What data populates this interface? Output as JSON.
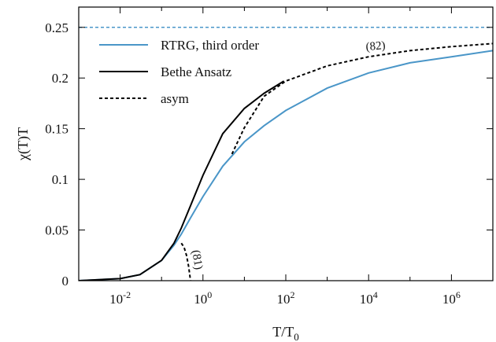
{
  "chart_data": {
    "type": "line",
    "title": "",
    "xlabel": "T/T",
    "xlabel_sub": "0",
    "ylabel": "χ(T)T",
    "x_scale": "log10",
    "xlim": [
      0.001,
      10000000
    ],
    "ylim": [
      0,
      0.27
    ],
    "grid": false,
    "legend_position": "top-left",
    "x_ticks": [
      {
        "value": 0.01,
        "base": "10",
        "exp": "-2"
      },
      {
        "value": 1,
        "base": "10",
        "exp": "0"
      },
      {
        "value": 100,
        "base": "10",
        "exp": "2"
      },
      {
        "value": 10000,
        "base": "10",
        "exp": "4"
      },
      {
        "value": 1000000,
        "base": "10",
        "exp": "6"
      }
    ],
    "y_ticks": [
      {
        "value": 0,
        "label": "0"
      },
      {
        "value": 0.05,
        "label": "0.05"
      },
      {
        "value": 0.1,
        "label": "0.1"
      },
      {
        "value": 0.15,
        "label": "0.15"
      },
      {
        "value": 0.2,
        "label": "0.2"
      },
      {
        "value": 0.25,
        "label": "0.25"
      }
    ],
    "series": [
      {
        "name": "RTRG, third order",
        "style": "solid",
        "color": "#4a96c8",
        "x": [
          0.001,
          0.01,
          0.03,
          0.1,
          0.2,
          0.3,
          0.5,
          1,
          3,
          10,
          30,
          100,
          1000,
          10000,
          100000,
          1000000,
          10000000
        ],
        "y": [
          0.0,
          0.002,
          0.006,
          0.02,
          0.035,
          0.046,
          0.062,
          0.083,
          0.113,
          0.137,
          0.153,
          0.168,
          0.19,
          0.205,
          0.215,
          0.221,
          0.227
        ]
      },
      {
        "name": "Bethe Ansatz",
        "style": "solid",
        "color": "#000000",
        "x": [
          0.001,
          0.01,
          0.03,
          0.1,
          0.2,
          0.3,
          0.5,
          1,
          3,
          10,
          30,
          90
        ],
        "y": [
          0.0,
          0.002,
          0.006,
          0.02,
          0.037,
          0.052,
          0.074,
          0.104,
          0.145,
          0.17,
          0.185,
          0.197
        ]
      },
      {
        "name": "asym",
        "style": "dashed",
        "color": "#000000",
        "x": [
          5,
          10,
          30,
          100,
          1000,
          10000,
          100000,
          1000000,
          10000000
        ],
        "y": [
          0.125,
          0.151,
          0.182,
          0.197,
          0.212,
          0.221,
          0.227,
          0.231,
          0.234
        ]
      },
      {
        "name": "",
        "style": "dashed",
        "color": "#000000",
        "x": [
          0.3,
          0.35,
          0.4,
          0.45,
          0.5
        ],
        "y": [
          0.037,
          0.033,
          0.025,
          0.014,
          0.0
        ]
      },
      {
        "name": "",
        "style": "dashed",
        "color": "#4a96c8",
        "x": [
          0.001,
          10000000
        ],
        "y": [
          0.25,
          0.25
        ]
      }
    ],
    "legend": [
      {
        "label": "RTRG, third order",
        "style": "solid",
        "color": "#4a96c8"
      },
      {
        "label": "Bethe Ansatz",
        "style": "solid",
        "color": "#000000"
      },
      {
        "label": "asym",
        "style": "dashed",
        "color": "#000000"
      }
    ],
    "annotations": [
      {
        "text": "(82)",
        "x": 15000,
        "y": 0.228,
        "rotation": -5
      },
      {
        "text": "(81)",
        "x": 0.6,
        "y": 0.02,
        "rotation": 80
      }
    ]
  }
}
